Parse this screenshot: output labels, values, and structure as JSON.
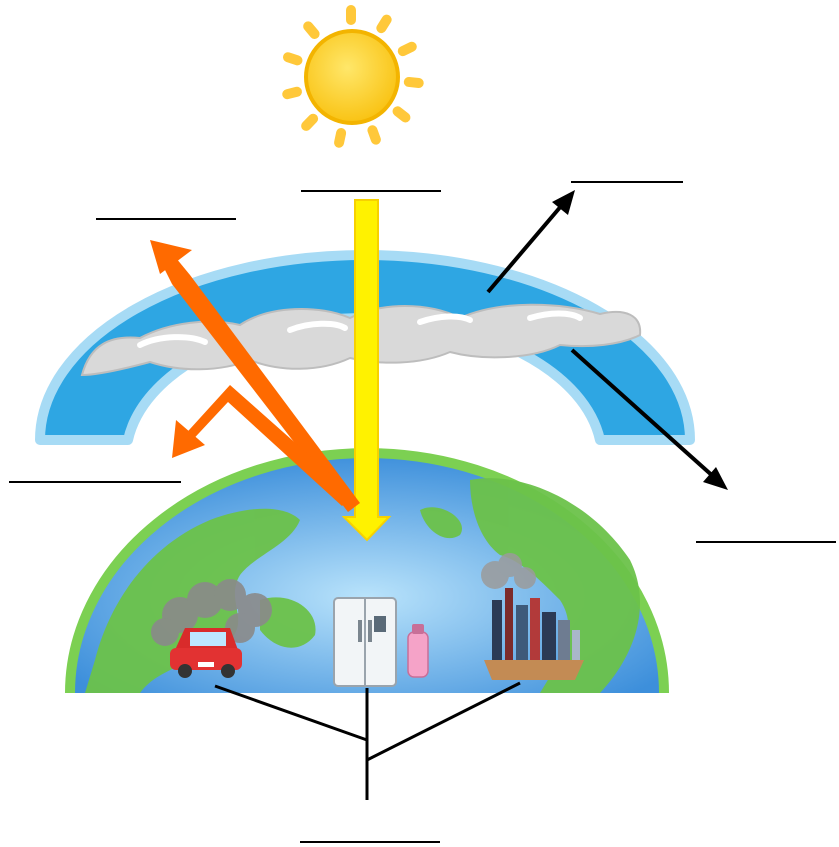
{
  "diagram": {
    "topic": "",
    "labels": {
      "sunlight_blank": "",
      "reflected_space_blank": "",
      "atmosphere_blank": "",
      "reflected_ground_blank": "",
      "trapped_heat_blank": "",
      "sources_blank": ""
    },
    "colors": {
      "sun": "#FFD21F",
      "sun_rays": "#FFC83A",
      "incoming_ray": "#FFF200",
      "reflected_ray": "#FF6A00",
      "atmosphere": "#2EA6E3",
      "cloud": "#D9D9D9",
      "ocean": "#3D8FDB",
      "land": "#6CC24A",
      "arrow": "#000000"
    },
    "icons": [
      "sun-icon",
      "car-icon",
      "refrigerator-icon",
      "spray-can-icon",
      "factory-icon"
    ]
  }
}
